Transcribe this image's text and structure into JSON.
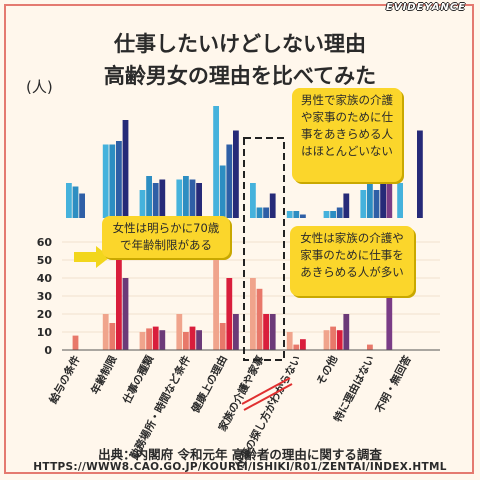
{
  "brand": "EVIDEYANCE",
  "title_line1": "仕事したいけどしない理由",
  "title_line2": "高齢男女の理由を比べてみた",
  "unit": "(人)",
  "notes": {
    "male": "男性で家族の介護や家事のために仕事をあきらめる人はほとんどいない",
    "family": "女性は家族の介護や家事のために仕事をあきらめる人が多い",
    "age": "女性は明らかに70歳で年齢制限がある"
  },
  "source_line1": "出典：内閣府 令和元年 高齢者の理由に関する調査",
  "source_line2": "HTTPS://WWW8.CAO.GO.JP/KOUREI/ISHIKI/R01/ZENTAI/INDEX.HTML",
  "colors": {
    "male": [
      "#45b2dc",
      "#2d8ec2",
      "#2f5fa6",
      "#262a78"
    ],
    "male_extra": "#7a3c86",
    "female": [
      "#f0a48c",
      "#e8786a",
      "#d91e3c",
      "#6c3a78"
    ],
    "highlight_box": "#222222",
    "arrow": "#f2d61c",
    "underline": "#e03030"
  },
  "chart_data": {
    "type": "bar",
    "categories": [
      "給与の条件",
      "年齢制限",
      "仕事の種類",
      "勤務場所・時間など条件",
      "健康上の理由",
      "家族の介護や家事",
      "仕事の探し方がわからない",
      "その他",
      "特に理由はない",
      "不明・無回答"
    ],
    "ylim": [
      0,
      60
    ],
    "yticks": [
      0,
      10,
      20,
      30,
      40,
      50,
      60
    ],
    "male": {
      "series": [
        {
          "values": [
            10,
            21,
            8,
            11,
            32,
            10,
            2,
            2,
            8,
            10
          ]
        },
        {
          "values": [
            9,
            21,
            12,
            12,
            15,
            3,
            2,
            2,
            12,
            null
          ]
        },
        {
          "values": [
            7,
            22,
            10,
            11,
            21,
            3,
            1,
            3,
            8,
            null
          ]
        },
        {
          "values": [
            null,
            28,
            11,
            10,
            25,
            7,
            null,
            7,
            31,
            25
          ]
        }
      ],
      "extra": {
        "category": "特に理由はない",
        "value": 24
      }
    },
    "female": {
      "series": [
        {
          "values": [
            null,
            20,
            10,
            20,
            50,
            40,
            10,
            11,
            null,
            null
          ]
        },
        {
          "values": [
            8,
            15,
            12,
            10,
            15,
            34,
            3,
            13,
            3,
            null
          ]
        },
        {
          "values": [
            null,
            52,
            13,
            13,
            40,
            20,
            6,
            11,
            null,
            null
          ]
        },
        {
          "values": [
            null,
            40,
            11,
            11,
            20,
            20,
            null,
            20,
            null,
            null
          ]
        }
      ],
      "extra": {
        "category": "特に理由はない",
        "value": 33
      }
    }
  }
}
